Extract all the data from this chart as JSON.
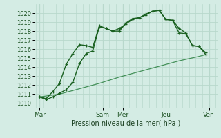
{
  "xlabel": "Pression niveau de la mer( hPa )",
  "bg_color": "#d4ece4",
  "grid_color_major": "#b8d8cc",
  "grid_color_minor": "#c8e4da",
  "line_color": "#1a6020",
  "line_color_light": "#2a8040",
  "ylim": [
    1009.5,
    1021.0
  ],
  "xlim": [
    -0.3,
    27.3
  ],
  "yticks": [
    1010,
    1011,
    1012,
    1013,
    1014,
    1015,
    1016,
    1017,
    1018,
    1019,
    1020
  ],
  "day_labels": [
    "Mar",
    "Sam",
    "Mer",
    "Jeu",
    "Ven"
  ],
  "day_x": [
    0.5,
    10,
    13,
    19.5,
    26
  ],
  "day_vlines": [
    0.5,
    10,
    13,
    19.5,
    26
  ],
  "s1_x": [
    0.5,
    1.5,
    2.5,
    3.5,
    4.5,
    5.5,
    6.5,
    7.5,
    8.5,
    9.5,
    10.5,
    11.5,
    12.5,
    13.5,
    14.5,
    15.5,
    16.5,
    17.5,
    18.5,
    19.5,
    20.5,
    21.5,
    22.5,
    23.5,
    24.5,
    25.5
  ],
  "s1_y": [
    1010.7,
    1010.4,
    1010.7,
    1011.1,
    1011.5,
    1012.3,
    1014.4,
    1015.5,
    1015.8,
    1018.5,
    1018.3,
    1018.0,
    1018.3,
    1018.8,
    1019.3,
    1019.5,
    1019.8,
    1020.2,
    1020.3,
    1019.3,
    1019.2,
    1018.3,
    1017.8,
    1016.4,
    1016.3,
    1015.4
  ],
  "s2_x": [
    0.5,
    1.5,
    2.5,
    3.5,
    4.5,
    5.5,
    6.5,
    7.5,
    8.5,
    9.5,
    10.5,
    11.5,
    12.5,
    13.5,
    14.5,
    15.5,
    16.5,
    17.5,
    18.5,
    19.5,
    20.5,
    21.5,
    22.5,
    23.5,
    24.5,
    25.5
  ],
  "s2_y": [
    1010.7,
    1010.5,
    1011.3,
    1012.2,
    1014.3,
    1015.5,
    1016.5,
    1016.4,
    1016.2,
    1018.6,
    1018.3,
    1018.0,
    1018.0,
    1018.9,
    1019.4,
    1019.5,
    1019.9,
    1020.2,
    1020.3,
    1019.3,
    1019.2,
    1017.8,
    1017.7,
    1016.4,
    1016.3,
    1015.6
  ],
  "s3_x": [
    0.5,
    3.5,
    6.5,
    9.5,
    12.5,
    15.5,
    18.5,
    21.5,
    24.5,
    25.5
  ],
  "s3_y": [
    1010.7,
    1011.0,
    1011.6,
    1012.2,
    1012.9,
    1013.5,
    1014.1,
    1014.7,
    1015.2,
    1015.4
  ]
}
